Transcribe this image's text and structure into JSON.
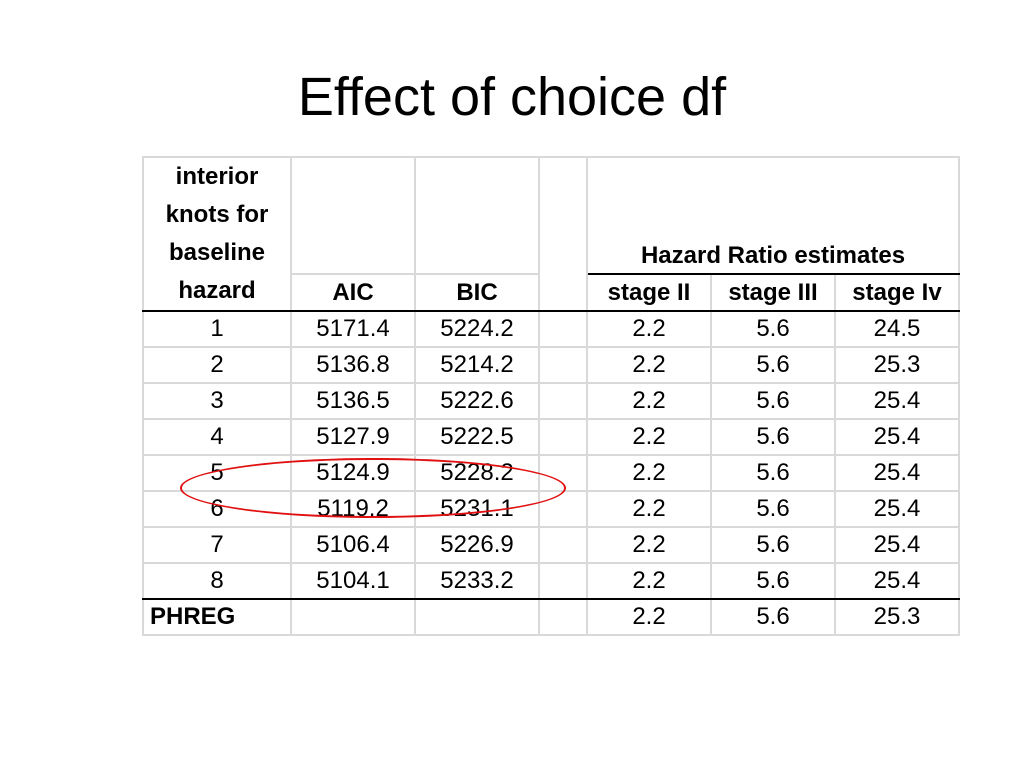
{
  "title": "Effect of choice df",
  "table": {
    "knots_header_lines": [
      "interior",
      "knots for",
      "baseline",
      "hazard"
    ],
    "aic_header": "AIC",
    "bic_header": "BIC",
    "hr_group_header": "Hazard Ratio estimates",
    "stage2_header": "stage II",
    "stage3_header": "stage III",
    "stage4_header": "stage Iv",
    "rows": [
      {
        "knots": "1",
        "aic": "5171.4",
        "bic": "5224.2",
        "s2": "2.2",
        "s3": "5.6",
        "s4": "24.5"
      },
      {
        "knots": "2",
        "aic": "5136.8",
        "bic": "5214.2",
        "s2": "2.2",
        "s3": "5.6",
        "s4": "25.3"
      },
      {
        "knots": "3",
        "aic": "5136.5",
        "bic": "5222.6",
        "s2": "2.2",
        "s3": "5.6",
        "s4": "25.4"
      },
      {
        "knots": "4",
        "aic": "5127.9",
        "bic": "5222.5",
        "s2": "2.2",
        "s3": "5.6",
        "s4": "25.4"
      },
      {
        "knots": "5",
        "aic": "5124.9",
        "bic": "5228.2",
        "s2": "2.2",
        "s3": "5.6",
        "s4": "25.4"
      },
      {
        "knots": "6",
        "aic": "5119.2",
        "bic": "5231.1",
        "s2": "2.2",
        "s3": "5.6",
        "s4": "25.4"
      },
      {
        "knots": "7",
        "aic": "5106.4",
        "bic": "5226.9",
        "s2": "2.2",
        "s3": "5.6",
        "s4": "25.4"
      },
      {
        "knots": "8",
        "aic": "5104.1",
        "bic": "5233.2",
        "s2": "2.2",
        "s3": "5.6",
        "s4": "25.4"
      }
    ],
    "phreg": {
      "label": "PHREG",
      "s2": "2.2",
      "s3": "5.6",
      "s4": "25.3"
    }
  },
  "highlight": {
    "color": "#e01010",
    "row_knots": "5"
  }
}
